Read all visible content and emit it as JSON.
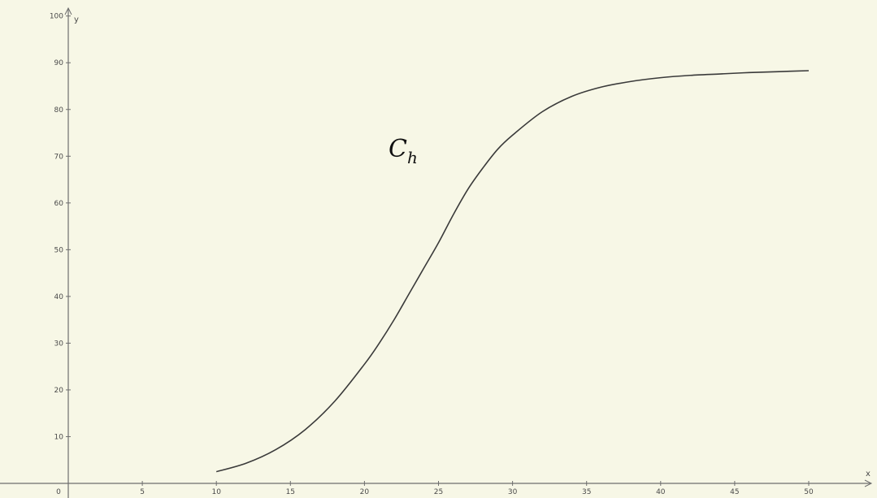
{
  "chart_data": {
    "type": "line",
    "title": "",
    "xlabel": "x",
    "ylabel": "y",
    "xlim": [
      0,
      54
    ],
    "ylim": [
      0,
      100
    ],
    "x_ticks": [
      0,
      5,
      10,
      15,
      20,
      25,
      30,
      35,
      40,
      45,
      50
    ],
    "x_tick_labels": [
      "0",
      "5",
      "10",
      "15",
      "20",
      "25",
      "30",
      "35",
      "40",
      "45",
      "50"
    ],
    "y_ticks": [
      10,
      20,
      30,
      40,
      50,
      60,
      70,
      80,
      90,
      100
    ],
    "y_tick_labels": [
      "10",
      "20",
      "30",
      "40",
      "50",
      "60",
      "70",
      "80",
      "90",
      "100"
    ],
    "grid": false,
    "series": [
      {
        "name": "",
        "label_main": "C",
        "label_sub": "h",
        "x": [
          10,
          12,
          14,
          16,
          18,
          20,
          21,
          22,
          23,
          24,
          25,
          26,
          27,
          28,
          29,
          30,
          32,
          34,
          36,
          38,
          40,
          42,
          44,
          46,
          48,
          50
        ],
        "y": [
          2.5,
          4.3,
          7.2,
          11.5,
          17.6,
          25.5,
          30.0,
          35.0,
          40.5,
          46.0,
          51.5,
          57.5,
          63.0,
          67.5,
          71.5,
          74.5,
          79.5,
          82.8,
          84.8,
          86.0,
          86.8,
          87.3,
          87.6,
          87.9,
          88.1,
          88.3
        ]
      }
    ],
    "colors": {
      "background": "#f7f7e6",
      "axis": "#6e6e6e",
      "curve": "#3a3a3a",
      "text": "#4a4a4a"
    }
  }
}
